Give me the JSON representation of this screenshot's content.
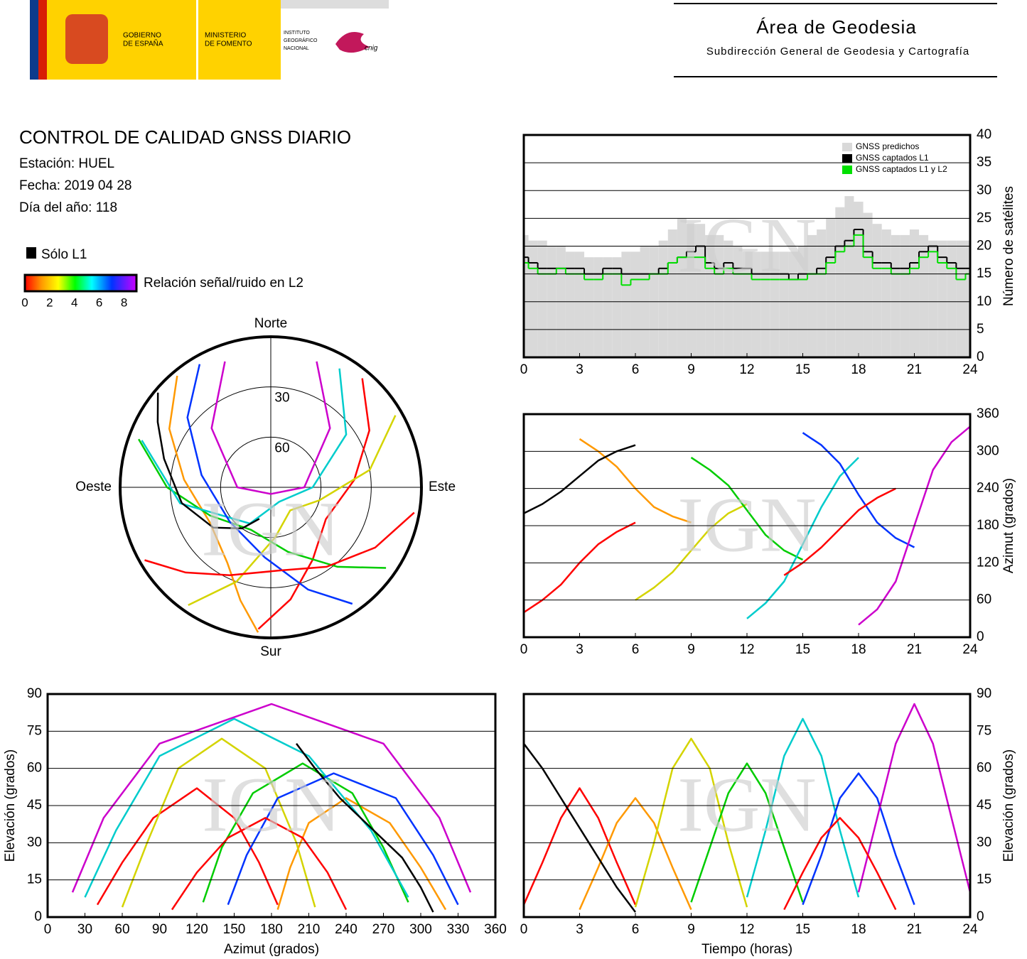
{
  "header": {
    "gov1": "GOBIERNO",
    "gov2": "DE ESPAÑA",
    "min1": "MINISTERIO",
    "min2": "DE FOMENTO",
    "ign1": "INSTITUTO",
    "ign2": "GEOGRÁFICO",
    "ign3": "NACIONAL",
    "cnig": "cnig",
    "area": "Área de Geodesia",
    "subdir": "Subdirección General de Geodesia y Cartografía"
  },
  "info": {
    "title": "CONTROL DE CALIDAD GNSS DIARIO",
    "station": "Estación: HUEL",
    "date": "Fecha: 2019 04 28",
    "doy": "Día del año: 118"
  },
  "legend": {
    "only_l1": "Sólo L1",
    "snr_label": "Relación señal/ruido en L2",
    "snr_lim": [
      0,
      9
    ],
    "snr_ticks": [
      0,
      2,
      4,
      6,
      8
    ]
  },
  "watermark": "IGN",
  "chart_data": [
    {
      "type": "step",
      "y_label": "Número de satélites",
      "xlim": [
        0,
        24
      ],
      "xticks": [
        0,
        3,
        6,
        9,
        12,
        15,
        18,
        21,
        24
      ],
      "ylim": [
        0,
        40
      ],
      "yticks": [
        0,
        5,
        10,
        15,
        20,
        25,
        30,
        35,
        40
      ],
      "grid": true,
      "legend": "upper right",
      "x": [
        0,
        0.5,
        1,
        1.5,
        2,
        2.5,
        3,
        3.5,
        4,
        4.5,
        5,
        5.5,
        6,
        6.5,
        7,
        7.5,
        8,
        8.5,
        9,
        9.5,
        10,
        10.5,
        11,
        11.5,
        12,
        12.5,
        13,
        13.5,
        14,
        14.5,
        15,
        15.5,
        16,
        16.5,
        17,
        17.5,
        18,
        18.5,
        19,
        19.5,
        20,
        20.5,
        21,
        21.5,
        22,
        22.5,
        23,
        23.5,
        24
      ],
      "series": [
        {
          "name": "GNSS predichos",
          "color": "#d9d9d9",
          "draw": "area",
          "values": [
            22,
            21,
            21,
            20,
            20,
            19,
            19,
            18,
            18,
            18,
            18,
            19,
            19,
            20,
            20,
            21,
            23,
            25,
            24,
            24,
            22,
            22,
            21,
            20,
            19,
            19,
            19,
            19,
            19,
            19,
            20,
            22,
            23,
            25,
            27,
            29,
            28,
            26,
            24,
            23,
            22,
            22,
            23,
            22,
            21,
            21,
            21,
            21,
            21
          ]
        },
        {
          "name": "GNSS captados L1",
          "color": "#000000",
          "draw": "step",
          "values": [
            18,
            17,
            16,
            16,
            16,
            16,
            16,
            15,
            15,
            16,
            16,
            15,
            15,
            15,
            15,
            16,
            17,
            18,
            19,
            20,
            17,
            16,
            17,
            16,
            16,
            15,
            15,
            15,
            15,
            14,
            15,
            15,
            16,
            18,
            20,
            21,
            23,
            19,
            17,
            17,
            16,
            16,
            17,
            19,
            20,
            18,
            17,
            16,
            16
          ]
        },
        {
          "name": "GNSS captados L1 y L2",
          "color": "#00e000",
          "draw": "step",
          "values": [
            17,
            16,
            15,
            15,
            16,
            15,
            15,
            14,
            14,
            15,
            15,
            13,
            14,
            14,
            15,
            15,
            17,
            18,
            18,
            18,
            16,
            15,
            16,
            15,
            15,
            14,
            14,
            14,
            14,
            14,
            14,
            15,
            15,
            17,
            19,
            20,
            22,
            18,
            16,
            16,
            15,
            15,
            16,
            18,
            19,
            17,
            16,
            14,
            15
          ]
        }
      ]
    },
    {
      "type": "line",
      "y_label": "Azimut (grados)",
      "xlim": [
        0,
        24
      ],
      "xticks": [
        0,
        3,
        6,
        9,
        12,
        15,
        18,
        21,
        24
      ],
      "ylim": [
        0,
        360
      ],
      "yticks": [
        0,
        60,
        120,
        180,
        240,
        300,
        360
      ],
      "grid": true,
      "series": [
        {
          "color": "#ff0000",
          "x": [
            0,
            1,
            2,
            3,
            4,
            5,
            6
          ],
          "values": [
            40,
            60,
            85,
            120,
            150,
            170,
            185
          ]
        },
        {
          "color": "#ff9900",
          "x": [
            3,
            4,
            5,
            6,
            7,
            8,
            9
          ],
          "values": [
            320,
            300,
            275,
            240,
            210,
            195,
            185
          ]
        },
        {
          "color": "#d4d400",
          "x": [
            6,
            7,
            8,
            9,
            10,
            11,
            12
          ],
          "values": [
            60,
            80,
            105,
            140,
            175,
            200,
            215
          ]
        },
        {
          "color": "#00cc00",
          "x": [
            9,
            10,
            11,
            12,
            13,
            14,
            15
          ],
          "values": [
            290,
            270,
            245,
            205,
            165,
            140,
            125
          ]
        },
        {
          "color": "#00cccc",
          "x": [
            12,
            13,
            14,
            15,
            16,
            17,
            18
          ],
          "values": [
            30,
            55,
            90,
            150,
            210,
            260,
            290
          ]
        },
        {
          "color": "#0033ff",
          "x": [
            15,
            16,
            17,
            18,
            19,
            20,
            21
          ],
          "values": [
            330,
            310,
            280,
            230,
            185,
            160,
            145
          ]
        },
        {
          "color": "#cc00cc",
          "x": [
            18,
            19,
            20,
            21,
            22,
            23,
            24
          ],
          "values": [
            20,
            45,
            90,
            180,
            270,
            315,
            340
          ]
        },
        {
          "color": "#000000",
          "x": [
            0,
            1,
            2,
            3,
            4,
            5,
            6
          ],
          "values": [
            200,
            215,
            235,
            260,
            285,
            300,
            310
          ]
        },
        {
          "color": "#ff0000",
          "x": [
            14,
            15,
            16,
            17,
            18,
            19,
            20
          ],
          "values": [
            100,
            120,
            145,
            175,
            205,
            225,
            240
          ]
        }
      ]
    },
    {
      "type": "line",
      "x_label": "Azimut (grados)",
      "y_label": "Elevación (grados)",
      "y_side": "left",
      "xlim": [
        0,
        360
      ],
      "xticks": [
        0,
        30,
        60,
        90,
        120,
        150,
        180,
        210,
        240,
        270,
        300,
        330,
        360
      ],
      "ylim": [
        0,
        90
      ],
      "yticks": [
        0,
        15,
        30,
        45,
        60,
        75,
        90
      ],
      "grid": true,
      "series": [
        {
          "color": "#ff0000",
          "x": [
            40,
            60,
            85,
            120,
            150,
            170,
            185
          ],
          "values": [
            5,
            22,
            40,
            52,
            40,
            22,
            5
          ]
        },
        {
          "color": "#ff9900",
          "x": [
            320,
            300,
            275,
            240,
            210,
            195,
            185
          ],
          "values": [
            3,
            20,
            38,
            48,
            38,
            20,
            3
          ]
        },
        {
          "color": "#d4d400",
          "x": [
            60,
            80,
            105,
            140,
            175,
            200,
            215
          ],
          "values": [
            4,
            30,
            60,
            72,
            60,
            30,
            4
          ]
        },
        {
          "color": "#00cc00",
          "x": [
            290,
            270,
            245,
            205,
            165,
            140,
            125
          ],
          "values": [
            6,
            28,
            50,
            62,
            50,
            28,
            6
          ]
        },
        {
          "color": "#00cccc",
          "x": [
            30,
            55,
            90,
            150,
            210,
            260,
            290
          ],
          "values": [
            8,
            35,
            65,
            80,
            65,
            35,
            8
          ]
        },
        {
          "color": "#0033ff",
          "x": [
            330,
            310,
            280,
            230,
            185,
            160,
            145
          ],
          "values": [
            5,
            25,
            48,
            58,
            48,
            25,
            5
          ]
        },
        {
          "color": "#cc00cc",
          "x": [
            20,
            45,
            90,
            180,
            270,
            315,
            340
          ],
          "values": [
            10,
            40,
            70,
            86,
            70,
            40,
            10
          ]
        },
        {
          "color": "#000000",
          "x": [
            200,
            215,
            235,
            260,
            285,
            300,
            310
          ],
          "values": [
            70,
            60,
            48,
            36,
            24,
            12,
            2
          ]
        },
        {
          "color": "#ff0000",
          "x": [
            100,
            120,
            145,
            175,
            205,
            225,
            240
          ],
          "values": [
            3,
            18,
            32,
            40,
            32,
            18,
            3
          ]
        }
      ]
    },
    {
      "type": "line",
      "x_label": "Tiempo (horas)",
      "y_label": "Elevación (grados)",
      "xlim": [
        0,
        24
      ],
      "xticks": [
        0,
        3,
        6,
        9,
        12,
        15,
        18,
        21,
        24
      ],
      "ylim": [
        0,
        90
      ],
      "yticks": [
        0,
        15,
        30,
        45,
        60,
        75,
        90
      ],
      "grid": true,
      "series": [
        {
          "color": "#ff0000",
          "x": [
            0,
            1,
            2,
            3,
            4,
            5,
            6
          ],
          "values": [
            5,
            22,
            40,
            52,
            40,
            22,
            5
          ]
        },
        {
          "color": "#ff9900",
          "x": [
            3,
            4,
            5,
            6,
            7,
            8,
            9
          ],
          "values": [
            3,
            20,
            38,
            48,
            38,
            20,
            3
          ]
        },
        {
          "color": "#d4d400",
          "x": [
            6,
            7,
            8,
            9,
            10,
            11,
            12
          ],
          "values": [
            4,
            30,
            60,
            72,
            60,
            30,
            4
          ]
        },
        {
          "color": "#00cc00",
          "x": [
            9,
            10,
            11,
            12,
            13,
            14,
            15
          ],
          "values": [
            6,
            28,
            50,
            62,
            50,
            28,
            6
          ]
        },
        {
          "color": "#00cccc",
          "x": [
            12,
            13,
            14,
            15,
            16,
            17,
            18
          ],
          "values": [
            8,
            35,
            65,
            80,
            65,
            35,
            8
          ]
        },
        {
          "color": "#0033ff",
          "x": [
            15,
            16,
            17,
            18,
            19,
            20,
            21
          ],
          "values": [
            5,
            25,
            48,
            58,
            48,
            25,
            5
          ]
        },
        {
          "color": "#cc00cc",
          "x": [
            18,
            19,
            20,
            21,
            22,
            23,
            24
          ],
          "values": [
            10,
            40,
            70,
            86,
            70,
            40,
            10
          ]
        },
        {
          "color": "#000000",
          "x": [
            0,
            1,
            2,
            3,
            4,
            5,
            6
          ],
          "values": [
            70,
            60,
            48,
            36,
            24,
            12,
            2
          ]
        },
        {
          "color": "#ff0000",
          "x": [
            14,
            15,
            16,
            17,
            18,
            19,
            20
          ],
          "values": [
            3,
            18,
            32,
            40,
            32,
            18,
            3
          ]
        }
      ]
    },
    {
      "type": "polar",
      "directions": [
        "Norte",
        "Este",
        "Sur",
        "Oeste"
      ],
      "rlim": [
        90,
        0
      ],
      "rticks": [
        30,
        60
      ],
      "series": [
        {
          "color": "#ff0000",
          "x": [
            40,
            60,
            85,
            120,
            150,
            170,
            185
          ],
          "values": [
            5,
            22,
            40,
            52,
            40,
            22,
            5
          ]
        },
        {
          "color": "#ff9900",
          "x": [
            320,
            300,
            275,
            240,
            210,
            195,
            185
          ],
          "values": [
            3,
            20,
            38,
            48,
            38,
            20,
            3
          ]
        },
        {
          "color": "#d4d400",
          "x": [
            60,
            80,
            105,
            140,
            175,
            200,
            215
          ],
          "values": [
            4,
            30,
            60,
            72,
            60,
            30,
            4
          ]
        },
        {
          "color": "#00cc00",
          "x": [
            290,
            270,
            245,
            205,
            165,
            140,
            125
          ],
          "values": [
            6,
            28,
            50,
            62,
            50,
            28,
            6
          ]
        },
        {
          "color": "#00cccc",
          "x": [
            30,
            55,
            90,
            150,
            210,
            260,
            290
          ],
          "values": [
            8,
            35,
            65,
            80,
            65,
            35,
            8
          ]
        },
        {
          "color": "#0033ff",
          "x": [
            330,
            310,
            280,
            230,
            185,
            160,
            145
          ],
          "values": [
            5,
            25,
            48,
            58,
            48,
            25,
            5
          ]
        },
        {
          "color": "#cc00cc",
          "x": [
            20,
            45,
            90,
            180,
            270,
            315,
            340
          ],
          "values": [
            10,
            40,
            70,
            86,
            70,
            40,
            10
          ]
        },
        {
          "color": "#000000",
          "x": [
            200,
            215,
            235,
            260,
            285,
            300,
            310
          ],
          "values": [
            70,
            60,
            48,
            36,
            24,
            12,
            2
          ]
        },
        {
          "color": "#ff0000",
          "x": [
            100,
            120,
            145,
            175,
            205,
            225,
            240
          ],
          "values": [
            3,
            18,
            32,
            40,
            32,
            18,
            3
          ]
        }
      ]
    }
  ]
}
